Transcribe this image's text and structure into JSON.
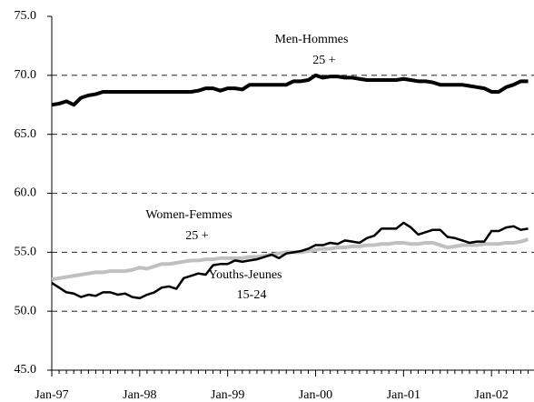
{
  "chart_data": {
    "type": "line",
    "categories": [
      "Jan-97",
      null,
      null,
      null,
      null,
      null,
      null,
      null,
      null,
      null,
      null,
      null,
      "Jan-98",
      null,
      null,
      null,
      null,
      null,
      null,
      null,
      null,
      null,
      null,
      null,
      "Jan-99",
      null,
      null,
      null,
      null,
      null,
      null,
      null,
      null,
      null,
      null,
      null,
      "Jan-00",
      null,
      null,
      null,
      null,
      null,
      null,
      null,
      null,
      null,
      null,
      null,
      "Jan-01",
      null,
      null,
      null,
      null,
      null,
      null,
      null,
      null,
      null,
      null,
      null,
      "Jan-02",
      null,
      null,
      null,
      null,
      null
    ],
    "series": [
      {
        "color": "#000000",
        "values": [
          67.5,
          67.6,
          67.8,
          67.5,
          68.1,
          68.3,
          68.4,
          68.6,
          68.6,
          68.6,
          68.6,
          68.6,
          68.6,
          68.6,
          68.6,
          68.6,
          68.6,
          68.6,
          68.6,
          68.6,
          68.7,
          68.9,
          68.9,
          68.7,
          68.9,
          68.9,
          68.8,
          69.2,
          69.2,
          69.2,
          69.2,
          69.2,
          69.2,
          69.5,
          69.5,
          69.6,
          70.0,
          69.8,
          69.9,
          69.9,
          69.8,
          69.8,
          69.7,
          69.6,
          69.6,
          69.6,
          69.6,
          69.6,
          69.7,
          69.6,
          69.5,
          69.5,
          69.4,
          69.2,
          69.2,
          69.2,
          69.2,
          69.1,
          69.0,
          68.9,
          68.6,
          68.6,
          69.0,
          69.2,
          69.5,
          69.5
        ]
      },
      {
        "color": "#000000",
        "values": [
          52.4,
          52.0,
          51.6,
          51.5,
          51.2,
          51.4,
          51.3,
          51.6,
          51.6,
          51.4,
          51.5,
          51.2,
          51.1,
          51.4,
          51.6,
          52.0,
          52.1,
          51.9,
          52.8,
          53.0,
          53.2,
          53.1,
          53.9,
          54.0,
          54.0,
          54.3,
          54.2,
          54.3,
          54.4,
          54.6,
          54.8,
          54.5,
          54.9,
          55.0,
          55.1,
          55.3,
          55.6,
          55.6,
          55.8,
          55.7,
          56.0,
          55.9,
          55.8,
          56.2,
          56.4,
          57.0,
          57.0,
          57.0,
          57.5,
          57.1,
          56.5,
          56.7,
          56.9,
          56.9,
          56.3,
          56.2,
          56.0,
          55.8,
          55.9,
          55.9,
          56.8,
          56.8,
          57.1,
          57.2,
          56.9,
          57.0
        ]
      },
      {
        "color": "#c0c0c0",
        "values": [
          52.7,
          52.8,
          52.9,
          53.0,
          53.1,
          53.2,
          53.3,
          53.3,
          53.4,
          53.4,
          53.4,
          53.5,
          53.7,
          53.6,
          53.8,
          54.0,
          54.0,
          54.1,
          54.2,
          54.3,
          54.3,
          54.4,
          54.4,
          54.5,
          54.5,
          54.5,
          54.5,
          54.6,
          54.6,
          54.7,
          54.8,
          54.9,
          55.0,
          55.0,
          55.0,
          55.1,
          55.2,
          55.3,
          55.3,
          55.4,
          55.4,
          55.5,
          55.5,
          55.6,
          55.6,
          55.7,
          55.7,
          55.8,
          55.8,
          55.7,
          55.7,
          55.8,
          55.8,
          55.6,
          55.4,
          55.5,
          55.6,
          55.6,
          55.6,
          55.7,
          55.7,
          55.7,
          55.8,
          55.8,
          55.9,
          56.1
        ]
      }
    ],
    "annotations": [
      "Men-Hommes",
      "25 +",
      "Women-Femmes",
      "25 +",
      "Youths-Jeunes",
      "15-24"
    ],
    "ylim": [
      45,
      75
    ],
    "yticks": [
      {
        "value": 45,
        "label": "45.0"
      },
      {
        "value": 50,
        "label": "50.0"
      },
      {
        "value": 55,
        "label": "55.0"
      },
      {
        "value": 60,
        "label": "60.0"
      },
      {
        "value": 65,
        "label": "65.0"
      },
      {
        "value": 70,
        "label": "70.0"
      },
      {
        "value": 75,
        "label": "75.0"
      }
    ],
    "grid": true
  }
}
